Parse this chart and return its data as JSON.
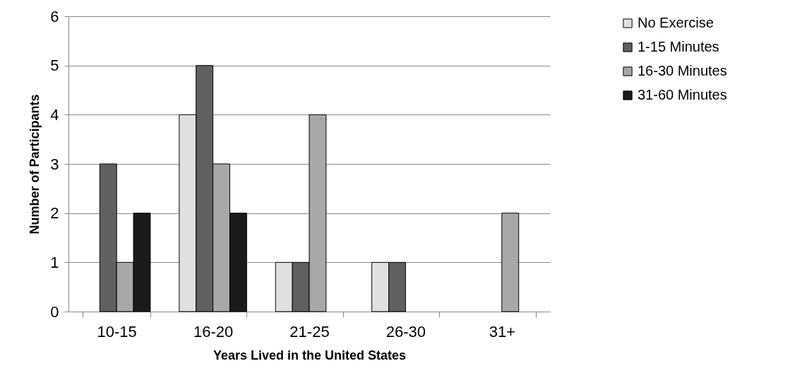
{
  "chart_data": {
    "type": "bar",
    "xlabel": "Years Lived in the United States",
    "ylabel": "Number of Participants",
    "categories": [
      "10-15",
      "16-20",
      "21-25",
      "26-30",
      "31+"
    ],
    "series": [
      {
        "name": "No Exercise",
        "color": "#e0e0e0",
        "values": [
          0,
          4,
          1,
          1,
          0
        ]
      },
      {
        "name": "1-15 Minutes",
        "color": "#606060",
        "values": [
          3,
          5,
          1,
          1,
          0
        ]
      },
      {
        "name": "16-30 Minutes",
        "color": "#a8a8a8",
        "values": [
          1,
          3,
          4,
          0,
          2
        ]
      },
      {
        "name": "31-60 Minutes",
        "color": "#1a1a1a",
        "values": [
          2,
          2,
          0,
          0,
          0
        ]
      }
    ],
    "ylim": [
      0,
      6
    ],
    "yticks": [
      0,
      1,
      2,
      3,
      4,
      5,
      6
    ],
    "grid": "y",
    "legend": "right"
  }
}
